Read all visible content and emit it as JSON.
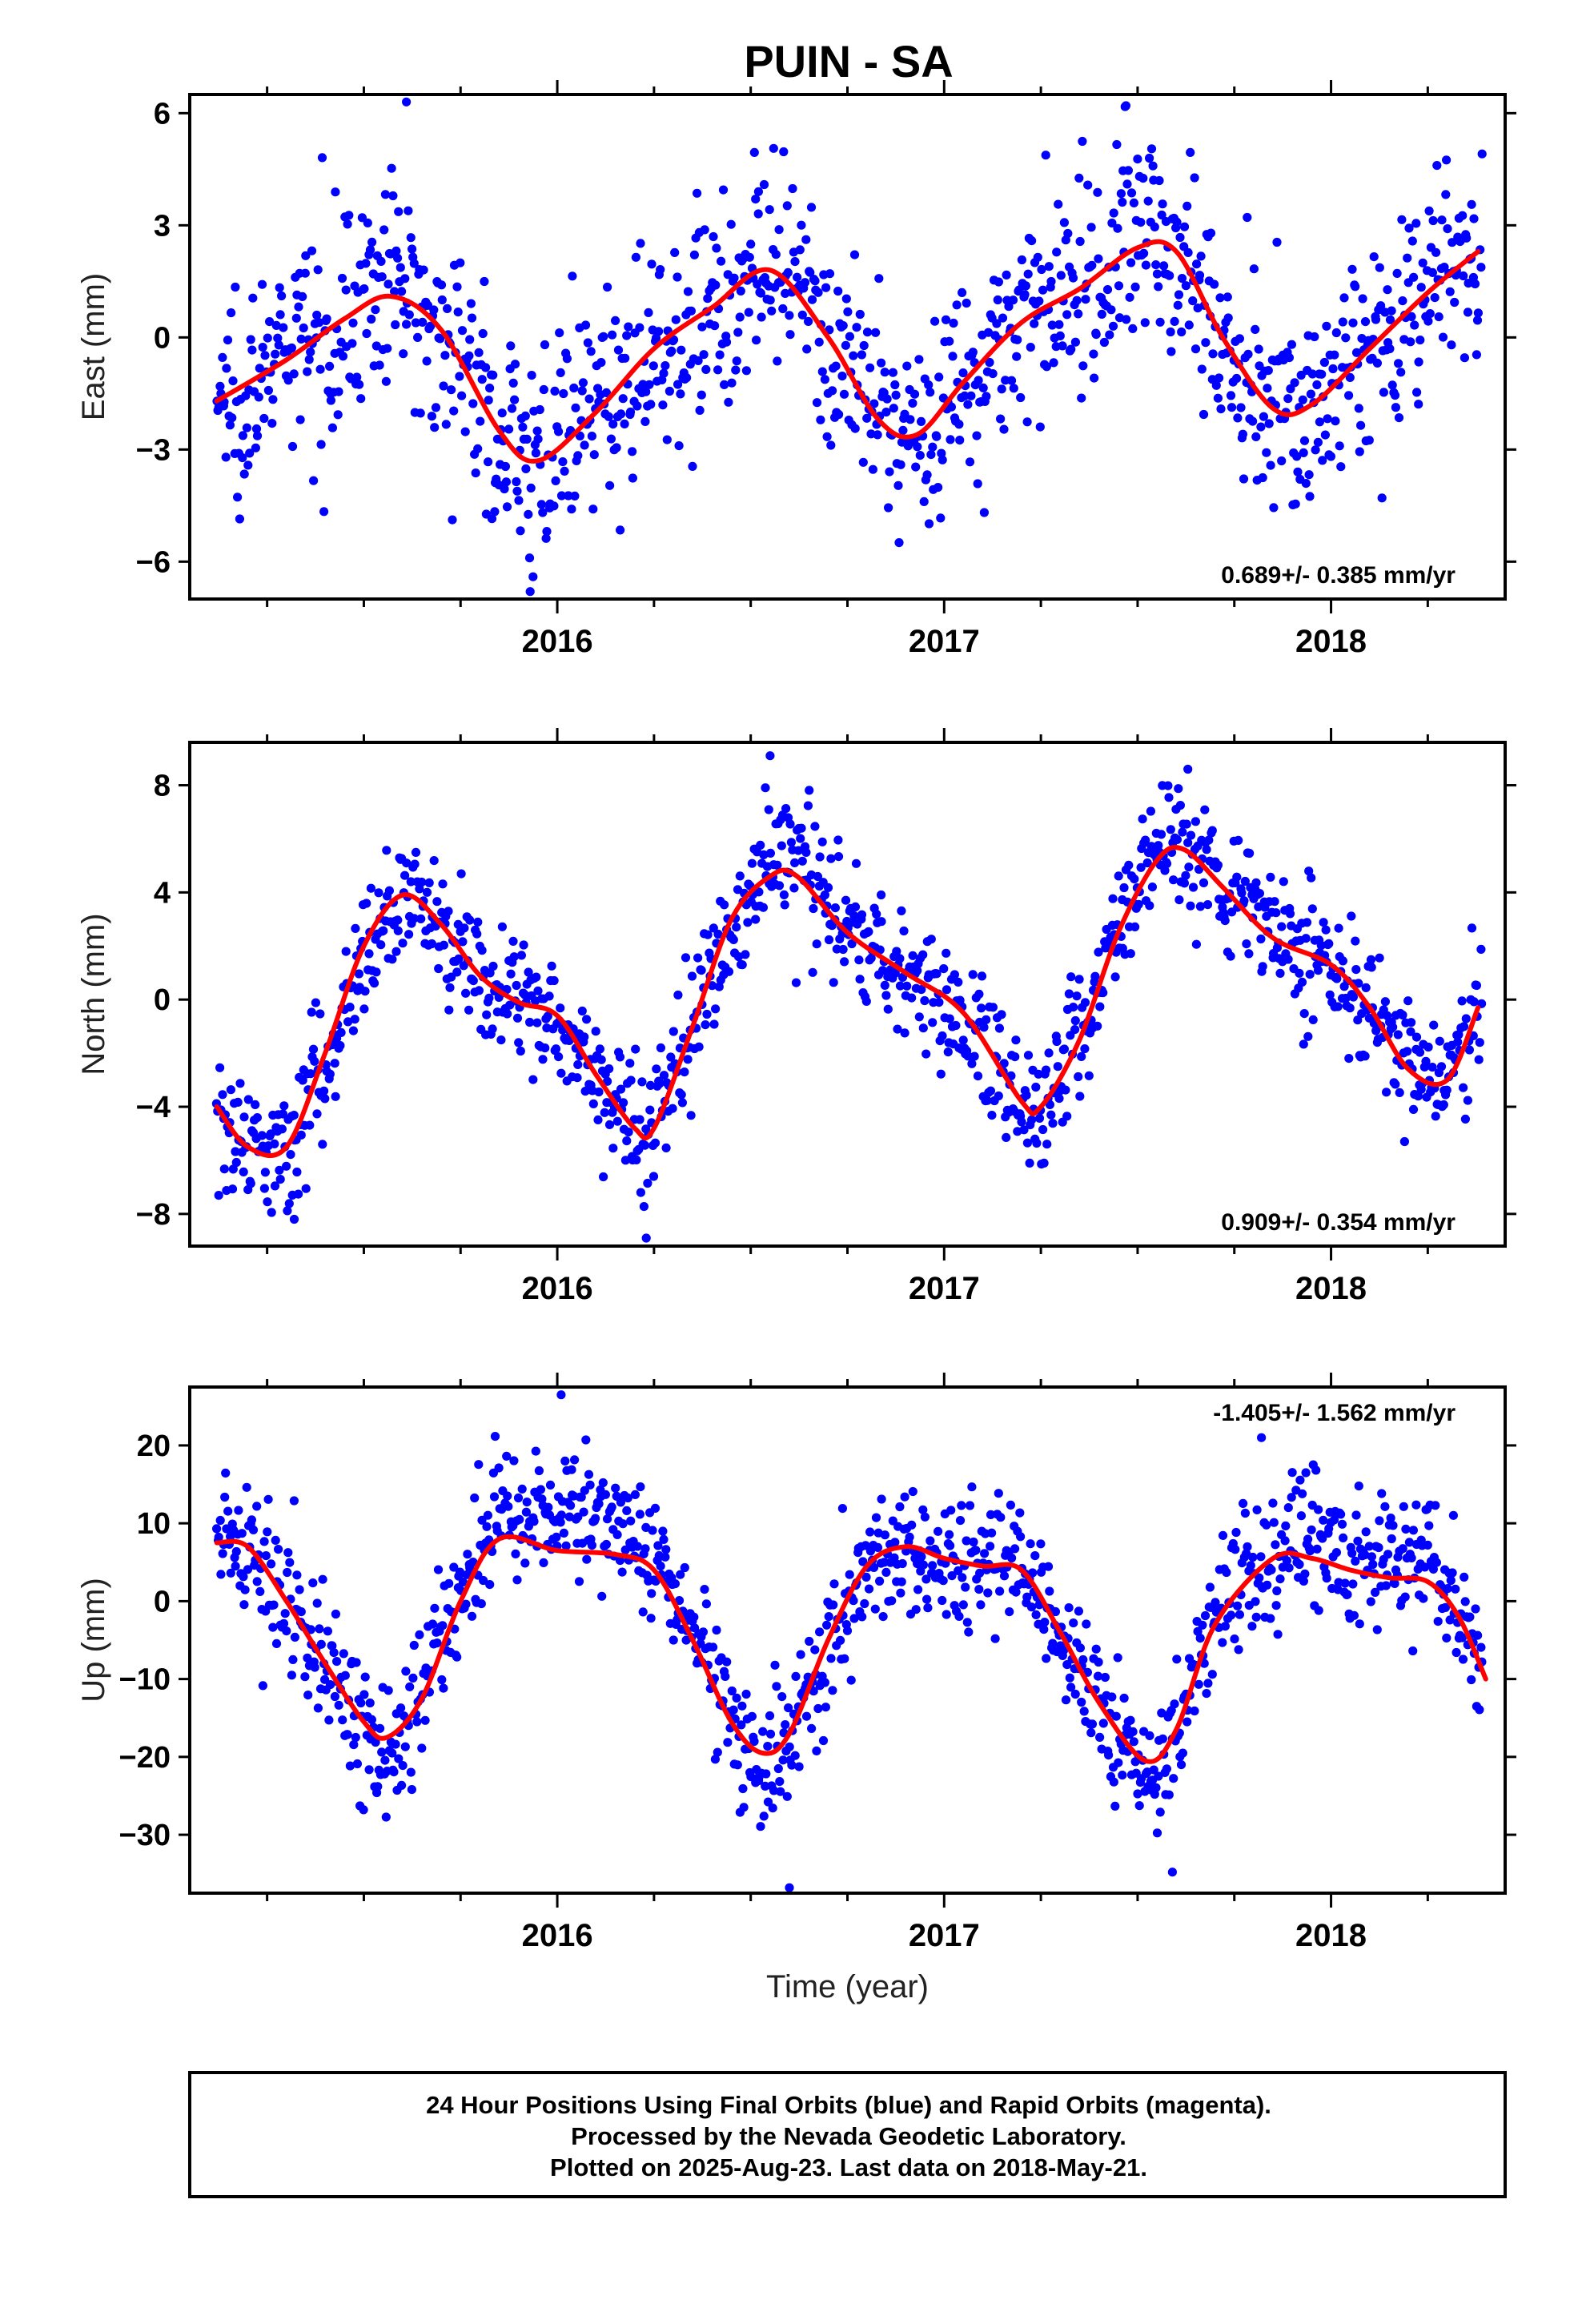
{
  "title": "PUIN - SA",
  "footer": {
    "lines": [
      "24 Hour Positions Using Final Orbits (blue) and Rapid Orbits (magenta).",
      "Processed by the Nevada Geodetic Laboratory.",
      "Plotted on 2025-Aug-23. Last data on 2018-May-21."
    ]
  },
  "colors": {
    "points": "#0000ff",
    "fit": "#ff0000",
    "frame": "#000000"
  },
  "chart_data": [
    {
      "type": "scatter",
      "ylabel": "East (mm)",
      "xlabel": "",
      "xlim": [
        2015.05,
        2018.45
      ],
      "ylim": [
        -7,
        6.5
      ],
      "yticks": [
        6,
        3,
        0,
        -3,
        -6
      ],
      "xticks": [
        2016,
        2017,
        2018
      ],
      "rate_label": "0.689+/- 0.385 mm/yr",
      "rate_position": "bottom-right",
      "fit_curve": {
        "x": [
          2015.12,
          2015.3,
          2015.45,
          2015.57,
          2015.7,
          2015.85,
          2015.95,
          2016.1,
          2016.25,
          2016.4,
          2016.55,
          2016.7,
          2016.83,
          2016.93,
          2017.05,
          2017.2,
          2017.35,
          2017.5,
          2017.6,
          2017.72,
          2017.85,
          2017.95,
          2018.1,
          2018.25,
          2018.38
        ],
        "y": [
          -1.7,
          -0.6,
          0.5,
          1.1,
          0.2,
          -2.5,
          -3.3,
          -2.0,
          -0.3,
          0.8,
          1.8,
          0.0,
          -2.2,
          -2.6,
          -1.2,
          0.4,
          1.3,
          2.4,
          2.3,
          0.0,
          -1.9,
          -1.8,
          -0.3,
          1.2,
          2.3
        ]
      },
      "points_anchor": {
        "x": [
          2015.12,
          2015.3,
          2015.45,
          2015.57,
          2015.7,
          2015.85,
          2015.95,
          2016.1,
          2016.25,
          2016.4,
          2016.55,
          2016.7,
          2016.83,
          2016.93,
          2017.05,
          2017.2,
          2017.35,
          2017.5,
          2017.6,
          2017.72,
          2017.85,
          2017.95,
          2018.1,
          2018.25,
          2018.38
        ],
        "y": [
          -1.7,
          -0.6,
          0.7,
          1.5,
          0.4,
          -2.5,
          -3.3,
          -2.0,
          -0.3,
          0.8,
          1.8,
          0.0,
          -2.2,
          -2.6,
          -1.2,
          0.4,
          1.3,
          2.8,
          2.5,
          0.0,
          -1.9,
          -1.8,
          -0.3,
          1.2,
          2.3
        ]
      },
      "scatter_sd": 1.4,
      "extremes": [
        [
          2015.61,
          6.3
        ],
        [
          2015.93,
          -6.8
        ],
        [
          2017.47,
          6.2
        ],
        [
          2016.52,
          3.9
        ]
      ]
    },
    {
      "type": "scatter",
      "ylabel": "North (mm)",
      "xlabel": "",
      "xlim": [
        2015.05,
        2018.45
      ],
      "ylim": [
        -9.2,
        9.6
      ],
      "yticks": [
        8,
        4,
        0,
        -4,
        -8
      ],
      "xticks": [
        2016,
        2017,
        2018
      ],
      "rate_label": "0.909+/- 0.354 mm/yr",
      "rate_position": "bottom-right",
      "fit_curve": {
        "x": [
          2015.12,
          2015.2,
          2015.3,
          2015.4,
          2015.5,
          2015.6,
          2015.7,
          2015.8,
          2015.9,
          2016.0,
          2016.1,
          2016.2,
          2016.25,
          2016.35,
          2016.45,
          2016.55,
          2016.62,
          2016.75,
          2016.9,
          2017.05,
          2017.2,
          2017.25,
          2017.35,
          2017.45,
          2017.55,
          2017.62,
          2017.72,
          2017.85,
          2018.0,
          2018.1,
          2018.2,
          2018.3,
          2018.38
        ],
        "y": [
          -4.0,
          -5.5,
          -5.5,
          -2.0,
          2.0,
          3.9,
          2.8,
          0.9,
          -0.1,
          -0.6,
          -2.8,
          -4.8,
          -4.8,
          -1.0,
          3.0,
          4.6,
          4.6,
          2.5,
          1.0,
          -0.5,
          -3.8,
          -4.0,
          -1.5,
          2.5,
          5.2,
          5.6,
          4.2,
          2.3,
          1.3,
          -0.3,
          -2.6,
          -3.0,
          -0.3
        ]
      },
      "points_anchor": {
        "x": [
          2015.12,
          2015.2,
          2015.3,
          2015.4,
          2015.5,
          2015.6,
          2015.7,
          2015.8,
          2015.9,
          2016.0,
          2016.1,
          2016.2,
          2016.25,
          2016.35,
          2016.45,
          2016.55,
          2016.62,
          2016.75,
          2016.9,
          2017.05,
          2017.2,
          2017.25,
          2017.35,
          2017.45,
          2017.55,
          2017.62,
          2017.72,
          2017.85,
          2018.0,
          2018.1,
          2018.2,
          2018.3,
          2018.38
        ],
        "y": [
          -4.0,
          -5.5,
          -5.5,
          -2.0,
          2.0,
          3.9,
          2.8,
          0.9,
          -0.1,
          -0.6,
          -2.8,
          -4.8,
          -4.8,
          -1.0,
          3.0,
          5.2,
          5.4,
          2.5,
          1.0,
          -0.5,
          -3.8,
          -4.0,
          -1.5,
          2.5,
          6.0,
          6.2,
          4.2,
          2.3,
          1.3,
          -0.3,
          -2.6,
          -3.0,
          -0.3
        ]
      },
      "scatter_sd": 1.2,
      "extremes": [
        [
          2016.55,
          9.1
        ],
        [
          2016.23,
          -8.9
        ],
        [
          2017.63,
          8.6
        ],
        [
          2015.32,
          -8.2
        ]
      ]
    },
    {
      "type": "scatter",
      "ylabel": "Up (mm)",
      "xlabel": "Time (year)",
      "xlim": [
        2015.05,
        2018.45
      ],
      "ylim": [
        -37.5,
        27.5
      ],
      "yticks": [
        20,
        10,
        0,
        -10,
        -20,
        -30
      ],
      "xticks": [
        2016,
        2017,
        2018
      ],
      "rate_label": "-1.405+/- 1.562 mm/yr",
      "rate_position": "top-right",
      "fit_curve": {
        "x": [
          2015.12,
          2015.2,
          2015.3,
          2015.4,
          2015.5,
          2015.56,
          2015.65,
          2015.75,
          2015.85,
          2016.0,
          2016.15,
          2016.25,
          2016.35,
          2016.45,
          2016.53,
          2016.6,
          2016.7,
          2016.8,
          2016.9,
          2017.0,
          2017.1,
          2017.2,
          2017.3,
          2017.4,
          2017.52,
          2017.6,
          2017.7,
          2017.85,
          2017.95,
          2018.05,
          2018.15,
          2018.25,
          2018.33,
          2018.4
        ],
        "y": [
          7.5,
          7.0,
          0.0,
          -8.0,
          -15.5,
          -17.5,
          -12.5,
          0.0,
          8.0,
          6.5,
          6.0,
          4.0,
          -5.0,
          -15.5,
          -19.5,
          -17.0,
          -5.0,
          4.5,
          7.0,
          5.5,
          4.5,
          4.0,
          -4.0,
          -13.0,
          -20.5,
          -16.5,
          -3.0,
          5.5,
          5.5,
          4.0,
          3.0,
          2.5,
          -2.0,
          -10.0
        ]
      },
      "points_anchor": {
        "x": [
          2015.12,
          2015.2,
          2015.3,
          2015.4,
          2015.5,
          2015.56,
          2015.65,
          2015.75,
          2015.85,
          2016.0,
          2016.15,
          2016.25,
          2016.35,
          2016.45,
          2016.53,
          2016.6,
          2016.7,
          2016.8,
          2016.9,
          2017.0,
          2017.1,
          2017.2,
          2017.3,
          2017.4,
          2017.52,
          2017.6,
          2017.7,
          2017.85,
          2017.95,
          2018.05,
          2018.15,
          2018.25,
          2018.33,
          2018.4
        ],
        "y": [
          7.5,
          7.0,
          0.0,
          -8.0,
          -15.5,
          -19.5,
          -12.5,
          0.0,
          10.0,
          12.0,
          11.0,
          5.0,
          -5.0,
          -15.5,
          -21.5,
          -17.0,
          -5.0,
          4.5,
          7.0,
          5.5,
          4.5,
          4.0,
          -4.0,
          -13.0,
          -22.5,
          -16.5,
          -3.0,
          6.5,
          8.5,
          5.0,
          6.0,
          7.0,
          -2.0,
          -10.0
        ]
      },
      "scatter_sd": 4.2,
      "extremes": [
        [
          2016.01,
          26.5
        ],
        [
          2016.6,
          -36.8
        ],
        [
          2017.59,
          -34.8
        ],
        [
          2017.82,
          21.0
        ]
      ]
    }
  ]
}
